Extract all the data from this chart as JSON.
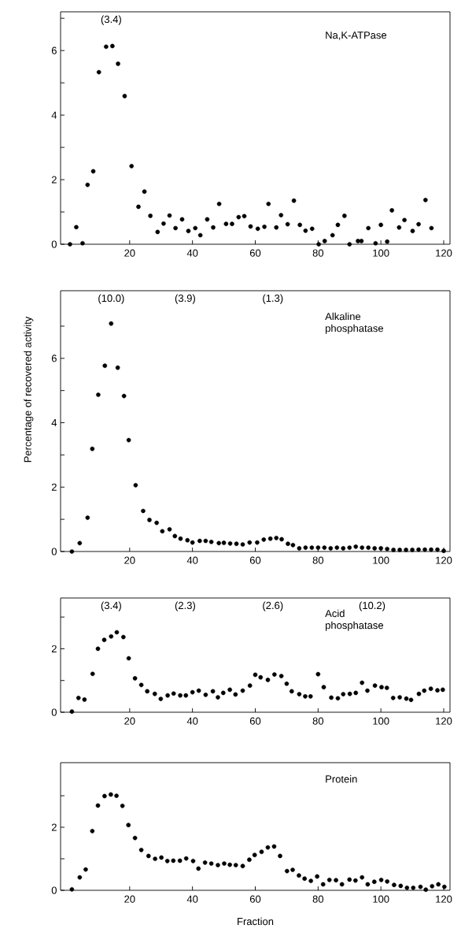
{
  "chart_data": [
    {
      "type": "scatter",
      "title": "Na,K-ATPase",
      "color": "#000000",
      "x": [
        1,
        3,
        5,
        6.6,
        8.4,
        10.2,
        12.5,
        14.5,
        16.3,
        18.4,
        20.6,
        22.8,
        24.7,
        26.6,
        28.9,
        30.8,
        32.7,
        34.6,
        36.7,
        38.7,
        40.9,
        42.5,
        44.7,
        46.6,
        48.5,
        50.7,
        52.6,
        54.7,
        56.5,
        58.5,
        60.8,
        62.9,
        64.2,
        66.7,
        68.2,
        70.3,
        72.3,
        74.2,
        76,
        78.1,
        80.2,
        82.1,
        84.6,
        86.3,
        88.4,
        90,
        92.7,
        93.8,
        96,
        98.3,
        100,
        102,
        103.5,
        105.8,
        107.5,
        110.1,
        112,
        114.2,
        116.1
      ],
      "values": [
        0,
        0.53,
        0.03,
        1.84,
        2.26,
        5.33,
        6.12,
        6.14,
        5.59,
        4.59,
        2.42,
        1.16,
        1.63,
        0.88,
        0.38,
        0.64,
        0.89,
        0.5,
        0.77,
        0.41,
        0.5,
        0.28,
        0.77,
        0.52,
        1.25,
        0.63,
        0.63,
        0.84,
        0.87,
        0.55,
        0.48,
        0.54,
        1.25,
        0.52,
        0.9,
        0.62,
        1.35,
        0.6,
        0.42,
        0.48,
        0,
        0.1,
        0.28,
        0.6,
        0.88,
        0,
        0.1,
        0.1,
        0.5,
        0.03,
        0.6,
        0.08,
        1.05,
        0.52,
        0.75,
        0.41,
        0.62,
        1.37,
        0.5
      ],
      "xlim": [
        -2,
        122
      ],
      "xticks": [
        20,
        40,
        60,
        80,
        100,
        120
      ],
      "ylim": [
        0,
        7.2
      ],
      "yticks": [
        0,
        {
          "value": 1,
          "label": null
        },
        2,
        {
          "value": 3,
          "label": null
        },
        4,
        {
          "value": 5,
          "label": null
        },
        6,
        {
          "value": 7,
          "label": null
        }
      ],
      "annotations": [
        "(3.4)"
      ]
    },
    {
      "type": "scatter",
      "title": "Alkaline phosphatase",
      "ylabel": "Percentage of recovered activity",
      "color": "#000000",
      "x": [
        1.6,
        4.1,
        6.6,
        8.1,
        10,
        12.1,
        14.1,
        16.2,
        18.2,
        19.7,
        21.9,
        24.3,
        26.3,
        28.6,
        30.4,
        32.7,
        34.4,
        36.2,
        38.4,
        40,
        42.3,
        44.2,
        46,
        48.4,
        50,
        52,
        54,
        56,
        58.2,
        60.6,
        62.7,
        64.8,
        66.7,
        68.4,
        70.4,
        72,
        74,
        76,
        78,
        80,
        82,
        84,
        86,
        88,
        90,
        92,
        94,
        96,
        98,
        100,
        102,
        104,
        106,
        108,
        110,
        112,
        114,
        116,
        118,
        120
      ],
      "values": [
        0,
        0.26,
        1.05,
        3.19,
        4.87,
        5.77,
        7.08,
        5.71,
        4.83,
        3.46,
        2.06,
        1.26,
        0.98,
        0.89,
        0.63,
        0.69,
        0.48,
        0.4,
        0.35,
        0.28,
        0.33,
        0.33,
        0.3,
        0.26,
        0.27,
        0.25,
        0.24,
        0.22,
        0.28,
        0.28,
        0.37,
        0.4,
        0.42,
        0.38,
        0.24,
        0.2,
        0.1,
        0.12,
        0.12,
        0.12,
        0.12,
        0.1,
        0.12,
        0.1,
        0.12,
        0.15,
        0.12,
        0.12,
        0.1,
        0.1,
        0.08,
        0.05,
        0.05,
        0.05,
        0.05,
        0.06,
        0.06,
        0.06,
        0.06,
        0.02
      ],
      "xlim": [
        -2,
        122
      ],
      "xticks": [
        20,
        40,
        60,
        80,
        100,
        120
      ],
      "ylim": [
        0,
        8.1
      ],
      "yticks": [
        0,
        {
          "value": 1,
          "label": null
        },
        2,
        {
          "value": 3,
          "label": null
        },
        4,
        {
          "value": 5,
          "label": null
        },
        6,
        {
          "value": 7,
          "label": null
        }
      ],
      "annotations": [
        "(10.0)",
        "(3.9)",
        "(1.3)"
      ]
    },
    {
      "type": "scatter",
      "title": "Acid phosphatase",
      "color": "#000000",
      "x": [
        1.6,
        3.7,
        5.6,
        8.2,
        9.9,
        11.9,
        14.1,
        15.9,
        18,
        19.7,
        21.7,
        23.7,
        25.6,
        28,
        29.9,
        32.1,
        34,
        36.1,
        37.9,
        40,
        42,
        44.2,
        46.5,
        48.1,
        49.8,
        51.9,
        53.7,
        56,
        58.3,
        60,
        61.7,
        64,
        66.1,
        68.3,
        70,
        71.6,
        74,
        75.9,
        77.6,
        80,
        81.8,
        84.2,
        86.3,
        88,
        90.1,
        92,
        94,
        95.7,
        98.1,
        100.2,
        101.9,
        103.9,
        106,
        108.1,
        109.6,
        112.1,
        113.8,
        115.9,
        118,
        119.7
      ],
      "values": [
        0.02,
        0.45,
        0.4,
        1.21,
        2,
        2.28,
        2.39,
        2.52,
        2.37,
        1.7,
        1.07,
        0.86,
        0.66,
        0.58,
        0.42,
        0.53,
        0.59,
        0.53,
        0.53,
        0.63,
        0.68,
        0.55,
        0.66,
        0.47,
        0.61,
        0.71,
        0.56,
        0.68,
        0.84,
        1.18,
        1.1,
        1.02,
        1.19,
        1.14,
        0.9,
        0.66,
        0.57,
        0.5,
        0.5,
        1.2,
        0.79,
        0.46,
        0.44,
        0.57,
        0.58,
        0.61,
        0.93,
        0.68,
        0.84,
        0.79,
        0.77,
        0.45,
        0.47,
        0.43,
        0.39,
        0.58,
        0.68,
        0.74,
        0.69,
        0.71
      ],
      "xlim": [
        -2,
        122
      ],
      "xticks": [
        20,
        40,
        60,
        80,
        100,
        120
      ],
      "ylim": [
        0,
        3.6
      ],
      "yticks": [
        0,
        {
          "value": 1,
          "label": null
        },
        2,
        {
          "value": 3,
          "label": null
        }
      ],
      "annotations": [
        "(3.4)",
        "(2.3)",
        "(2.6)",
        "(10.2)"
      ]
    },
    {
      "type": "scatter",
      "title": "Protein",
      "xlabel": "Fraction",
      "color": "#000000",
      "x": [
        1.6,
        4.1,
        6,
        8.1,
        9.9,
        12,
        14,
        15.8,
        17.7,
        19.6,
        21.7,
        23.7,
        26,
        28.1,
        30.1,
        32,
        33.9,
        36,
        38,
        40.2,
        41.9,
        44,
        46,
        48.1,
        50.1,
        51.9,
        53.8,
        56,
        58.1,
        59.8,
        62,
        64,
        66,
        67.9,
        70.1,
        71.9,
        73.9,
        75.7,
        77.7,
        79.7,
        81.6,
        83.6,
        85.7,
        87.6,
        90,
        91.9,
        94,
        95.8,
        97.9,
        100.1,
        102,
        104.2,
        106.3,
        108.3,
        110.3,
        112.6,
        114.3,
        116.3,
        118.3,
        120.2
      ],
      "values": [
        0.03,
        0.41,
        0.66,
        1.88,
        2.69,
        2.99,
        3.04,
        3,
        2.68,
        2.07,
        1.66,
        1.28,
        1.09,
        1,
        1.04,
        0.93,
        0.94,
        0.94,
        1.01,
        0.93,
        0.69,
        0.88,
        0.85,
        0.8,
        0.85,
        0.81,
        0.8,
        0.77,
        0.97,
        1.12,
        1.22,
        1.36,
        1.39,
        1.09,
        0.61,
        0.65,
        0.47,
        0.37,
        0.3,
        0.44,
        0.19,
        0.33,
        0.32,
        0.19,
        0.34,
        0.31,
        0.41,
        0.19,
        0.27,
        0.33,
        0.28,
        0.17,
        0.14,
        0.08,
        0.08,
        0.11,
        0.02,
        0.13,
        0.19,
        0.11
      ],
      "xlim": [
        -2,
        122
      ],
      "xticks": [
        20,
        40,
        60,
        80,
        100,
        120
      ],
      "ylim": [
        0,
        4.05
      ],
      "yticks": [
        0,
        {
          "value": 1,
          "label": null
        },
        2,
        {
          "value": 3,
          "label": null
        }
      ]
    }
  ]
}
